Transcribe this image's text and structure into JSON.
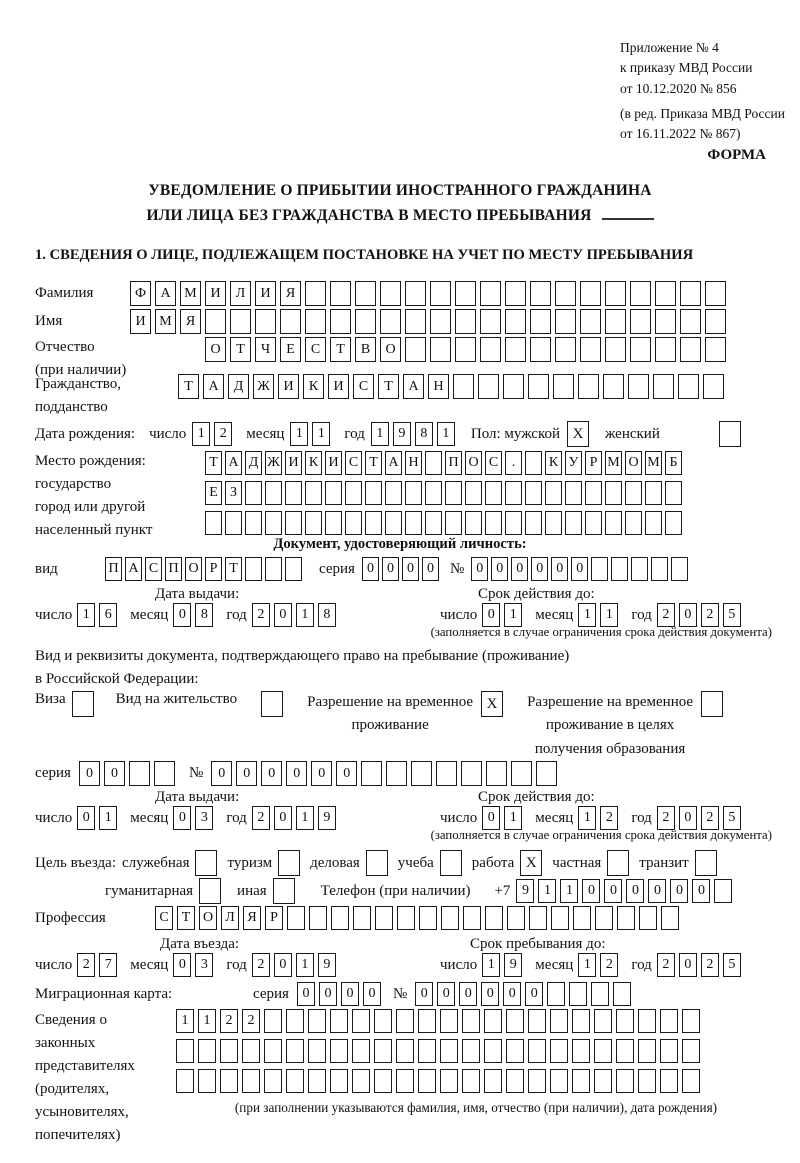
{
  "annex": {
    "line1": "Приложение № 4",
    "line2": "к приказу МВД России",
    "line3": "от 10.12.2020 № 856",
    "line4": "(в ред. Приказа МВД России",
    "line5": "от 16.11.2022 № 867)"
  },
  "forma": "ФОРМА",
  "title": {
    "line1": "УВЕДОМЛЕНИЕ О ПРИБЫТИИ ИНОСТРАННОГО ГРАЖДАНИНА",
    "line2": "ИЛИ ЛИЦА БЕЗ ГРАЖДАНСТВА В МЕСТО ПРЕБЫВАНИЯ"
  },
  "section1_heading": "1. СВЕДЕНИЯ О ЛИЦЕ, ПОДЛЕЖАЩЕМ ПОСТАНОВКЕ НА УЧЕТ ПО МЕСТУ ПРЕБЫВАНИЯ",
  "labels": {
    "day": "число",
    "month": "месяц",
    "year": "год",
    "series": "серия",
    "number": "№",
    "issue": "Дата выдачи:",
    "validity": "Срок действия до:",
    "validity_note": "(заполняется в случае ограничения срока действия документа)"
  },
  "surname": {
    "label": "Фамилия",
    "value": "ФАМИЛИЯ",
    "cells": 24
  },
  "firstname": {
    "label": "Имя",
    "value": "ИМЯ",
    "cells": 24
  },
  "patronymic": {
    "label1": "Отчество",
    "label2": "(при наличии)",
    "value": "ОТЧЕСТВО",
    "cells": 21
  },
  "citizenship": {
    "label1": "Гражданство,",
    "label2": "подданство",
    "value": "ТАДЖИКИСТАН",
    "cells": 22
  },
  "birth_date": {
    "label": "Дата рождения:",
    "day": "12",
    "month": "11",
    "year": "1981",
    "sex_label": "Пол: мужской",
    "male_mark": "X",
    "female_label": "женский",
    "female_mark": ""
  },
  "birth_place": {
    "label1": "Место рождения:",
    "label2": "государство",
    "label3": "город или другой",
    "label4": "населенный пункт",
    "row1": {
      "value": "ТАДЖИКИСТАН ПОС. КУРМОМБ",
      "cells": 24
    },
    "row2": {
      "value": "ЕЗ",
      "cells": 24
    },
    "row3": {
      "value": "",
      "cells": 24
    }
  },
  "identity_doc": {
    "heading": "Документ, удостоверяющий личность:",
    "kind_label": "вид",
    "kind": {
      "value": "ПАСПОРТ",
      "cells": 10
    },
    "series": {
      "value": "0000",
      "cells": 4
    },
    "number": {
      "value": "000000",
      "cells": 11
    },
    "issue": {
      "day": "16",
      "month": "08",
      "year": "2018"
    },
    "validity": {
      "day": "01",
      "month": "11",
      "year": "2025"
    }
  },
  "residence_doc": {
    "line1": "Вид и реквизиты документа, подтверждающего право на пребывание (проживание)",
    "line2": "в Российской Федерации:",
    "visa_label": "Виза",
    "visa_mark": "",
    "permit_label": "Вид на жительство",
    "permit_mark": "",
    "rvp_line1": "Разрешение на временное",
    "rvp_line2": "проживание",
    "rvp_mark": "X",
    "rvp_edu_line1": "Разрешение на временное",
    "rvp_edu_line2": "проживание в целях",
    "rvp_edu_line3": "получения образования",
    "rvp_edu_mark": "",
    "series": {
      "value": "00",
      "cells": 4
    },
    "number": {
      "value": "000000",
      "cells": 14
    },
    "issue": {
      "day": "01",
      "month": "03",
      "year": "2019"
    },
    "validity": {
      "day": "01",
      "month": "12",
      "year": "2025"
    }
  },
  "visit_purpose": {
    "label": "Цель въезда:",
    "options": [
      {
        "label": "служебная",
        "mark": ""
      },
      {
        "label": "туризм",
        "mark": ""
      },
      {
        "label": "деловая",
        "mark": ""
      },
      {
        "label": "учеба",
        "mark": ""
      },
      {
        "label": "работа",
        "mark": "X"
      },
      {
        "label": "частная",
        "mark": ""
      },
      {
        "label": "транзит",
        "mark": ""
      },
      {
        "label": "гуманитарная",
        "mark": ""
      },
      {
        "label": "иная",
        "mark": ""
      }
    ]
  },
  "phone": {
    "label": "Телефон (при наличии)",
    "prefix": "+7",
    "value": "911000000",
    "cells": 10
  },
  "profession": {
    "label": "Профессия",
    "value": "СТОЛЯР",
    "cells": 24
  },
  "entry_date": {
    "label": "Дата въезда:",
    "day": "27",
    "month": "03",
    "year": "2019"
  },
  "stay_until": {
    "label": "Срок пребывания до:",
    "day": "19",
    "month": "12",
    "year": "2025"
  },
  "migration_card": {
    "label": "Миграционная карта:",
    "series": {
      "value": "0000",
      "cells": 4
    },
    "number": {
      "value": "000000",
      "cells": 10
    }
  },
  "representatives": {
    "label1": "Сведения о",
    "label2": "законных",
    "label3": "представителях",
    "label4": "(родителях,",
    "label5": "усыновителях,",
    "label6": "попечителях)",
    "row1": {
      "value": "1122",
      "cells": 24
    },
    "row2": {
      "value": "",
      "cells": 24
    },
    "row3": {
      "value": "",
      "cells": 24
    },
    "note": "(при заполнении указываются фамилия, имя, отчество (при наличии), дата рождения)"
  }
}
